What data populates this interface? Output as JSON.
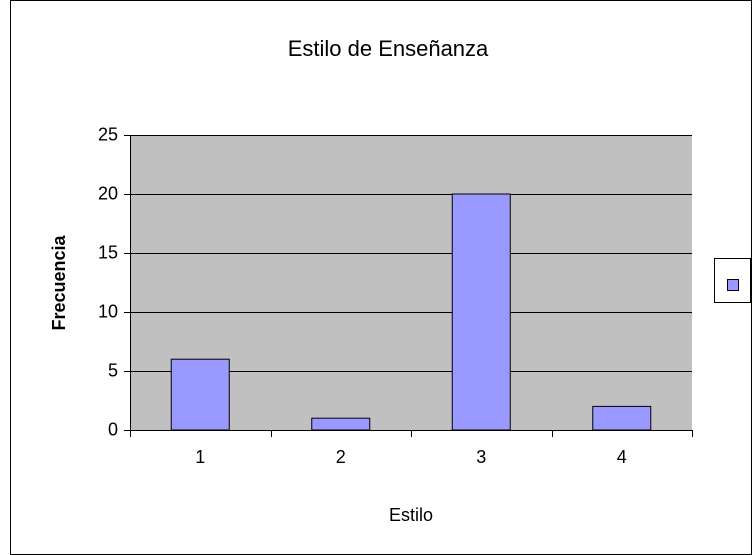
{
  "chart_data": {
    "type": "bar",
    "title": "Estilo de Enseñanza",
    "x_label": "Estilo",
    "y_label": "Frecuencia",
    "categories": [
      "1",
      "2",
      "3",
      "4"
    ],
    "values": [
      6,
      1,
      20,
      2
    ],
    "color": "#9999ff",
    "ylim": [
      0,
      25
    ],
    "yticks": [
      0,
      5,
      10,
      15,
      20,
      25
    ],
    "grid": true,
    "plot_background": "#c0c0c0"
  }
}
